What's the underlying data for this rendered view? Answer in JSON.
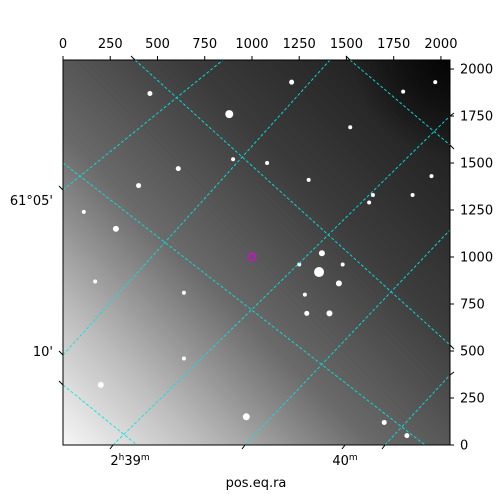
{
  "chart_data": {
    "type": "scatter",
    "description_kind": "astronomical image with celestial coordinate grid",
    "xlabel": "pos.eq.ra",
    "ylabel": "",
    "pixel_x_axis": {
      "range": [
        0,
        2048
      ],
      "ticks": [
        0,
        250,
        500,
        750,
        1000,
        1250,
        1500,
        1750,
        2000
      ],
      "tick_labels": [
        "0",
        "250",
        "500",
        "750",
        "1000",
        "1250",
        "1500",
        "1750",
        "2000"
      ]
    },
    "pixel_y_axis": {
      "range": [
        0,
        2048
      ],
      "ticks": [
        0,
        250,
        500,
        750,
        1000,
        1250,
        1500,
        1750,
        2000
      ],
      "tick_labels": [
        "0",
        "250",
        "500",
        "750",
        "1000",
        "1250",
        "1500",
        "1750",
        "2000"
      ]
    },
    "ra_ticks": [
      {
        "label_main": "2",
        "label_sup1": "h",
        "label_mid": "39",
        "label_sup2": "m"
      },
      {
        "label_main": "40",
        "label_sup1": "",
        "label_mid": "",
        "label_sup2": "m"
      }
    ],
    "dec_ticks": [
      {
        "label": "61°05'"
      },
      {
        "label": "10'"
      }
    ],
    "grid": true,
    "grid_color": "#00e5e5",
    "marker": {
      "x": 1000,
      "y": 1000,
      "color": "#e000e0"
    },
    "stars": [
      [
        880,
        1760,
        4
      ],
      [
        460,
        1870,
        2.5
      ],
      [
        1370,
        1020,
        3
      ],
      [
        1355,
        920,
        5
      ],
      [
        1460,
        860,
        3
      ],
      [
        1410,
        700,
        3
      ],
      [
        1290,
        700,
        2.5
      ],
      [
        970,
        150,
        3.5
      ],
      [
        280,
        1150,
        3
      ],
      [
        400,
        1380,
        2.5
      ],
      [
        1210,
        1930,
        2.5
      ],
      [
        1800,
        1880,
        2
      ],
      [
        1640,
        1330,
        2
      ],
      [
        1520,
        1690,
        2
      ],
      [
        610,
        1470,
        2.5
      ],
      [
        110,
        1240,
        2
      ],
      [
        640,
        810,
        2
      ],
      [
        1250,
        960,
        2
      ],
      [
        1850,
        1330,
        2
      ],
      [
        1700,
        120,
        2.5
      ],
      [
        1820,
        50,
        2.5
      ],
      [
        200,
        320,
        3
      ],
      [
        640,
        460,
        2
      ],
      [
        1970,
        1930,
        2
      ],
      [
        1950,
        1430,
        2
      ],
      [
        1620,
        1290,
        2
      ],
      [
        1480,
        960,
        2
      ],
      [
        1280,
        800,
        2
      ],
      [
        1080,
        1500,
        2
      ],
      [
        900,
        1520,
        2
      ],
      [
        170,
        870,
        2
      ],
      [
        1300,
        1410,
        2
      ]
    ]
  }
}
